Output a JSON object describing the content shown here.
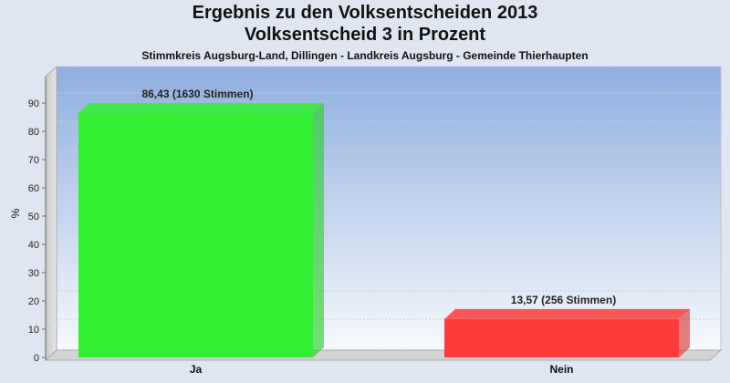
{
  "chart_data": {
    "type": "bar",
    "title": "Ergebnis zu den Volksentscheiden 2013",
    "title2": "Volksentscheid 3 in Prozent",
    "subtitle": "Stimmkreis Augsburg-Land, Dillingen - Landkreis Augsburg - Gemeinde Thierhaupten",
    "ylabel": "%",
    "ylim": [
      0,
      100
    ],
    "yticks": [
      0,
      10,
      20,
      30,
      40,
      50,
      60,
      70,
      80,
      90
    ],
    "grid": true,
    "categories": [
      "Ja",
      "Nein"
    ],
    "values": [
      86.43,
      13.57
    ],
    "value_labels": [
      "86,43 (1630 Stimmen)",
      "13,57 (256 Stimmen)"
    ],
    "colors": [
      "#33ee33",
      "#ff3c3c"
    ]
  }
}
